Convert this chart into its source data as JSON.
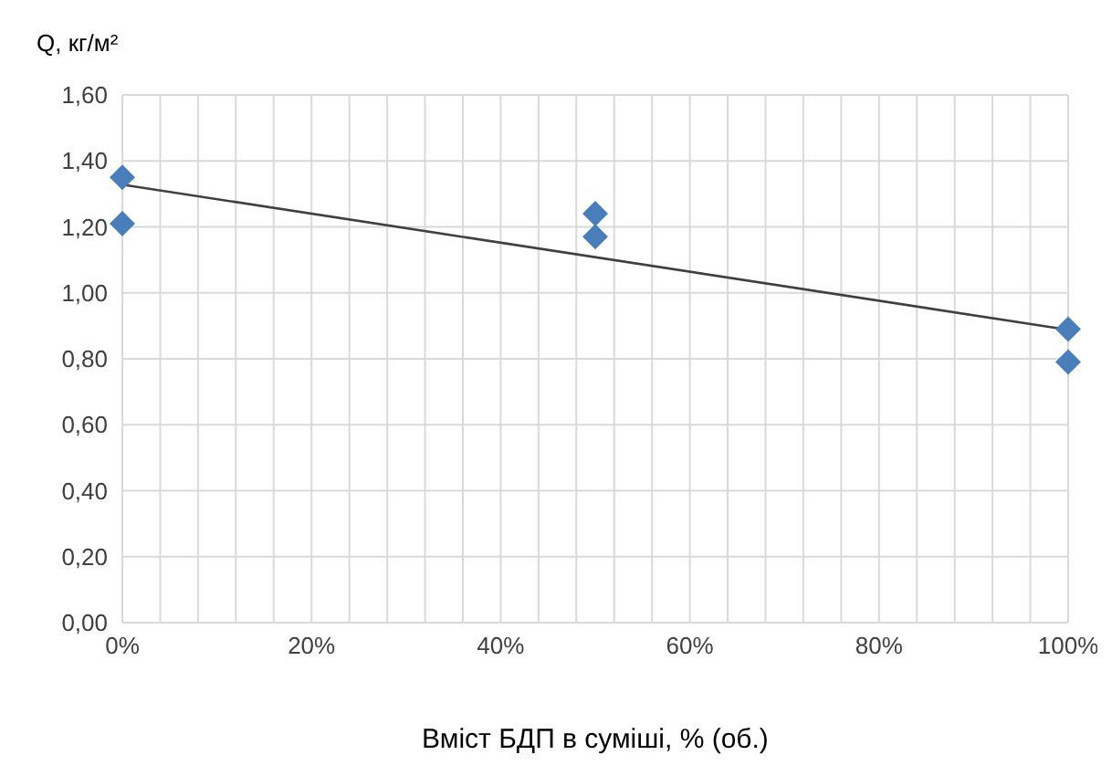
{
  "chart_data": {
    "type": "scatter",
    "xlabel": "Вміст БДП в суміші, % (об.)",
    "ylabel": "Q, кг/м²",
    "xlim": [
      0,
      100
    ],
    "xticks": [
      {
        "value": 0,
        "label": "0%"
      },
      {
        "value": 4,
        "label": null
      },
      {
        "value": 8,
        "label": null
      },
      {
        "value": 12,
        "label": null
      },
      {
        "value": 16,
        "label": null
      },
      {
        "value": 20,
        "label": "20%"
      },
      {
        "value": 24,
        "label": null
      },
      {
        "value": 28,
        "label": null
      },
      {
        "value": 32,
        "label": null
      },
      {
        "value": 36,
        "label": null
      },
      {
        "value": 40,
        "label": "40%"
      },
      {
        "value": 44,
        "label": null
      },
      {
        "value": 48,
        "label": null
      },
      {
        "value": 52,
        "label": null
      },
      {
        "value": 56,
        "label": null
      },
      {
        "value": 60,
        "label": "60%"
      },
      {
        "value": 64,
        "label": null
      },
      {
        "value": 68,
        "label": null
      },
      {
        "value": 72,
        "label": null
      },
      {
        "value": 76,
        "label": null
      },
      {
        "value": 80,
        "label": "80%"
      },
      {
        "value": 84,
        "label": null
      },
      {
        "value": 88,
        "label": null
      },
      {
        "value": 92,
        "label": null
      },
      {
        "value": 96,
        "label": null
      },
      {
        "value": 100,
        "label": "100%"
      }
    ],
    "ylim": [
      0,
      1.6
    ],
    "yticks": [
      {
        "value": 0,
        "label": "0,00"
      },
      {
        "value": 0.2,
        "label": "0,20"
      },
      {
        "value": 0.4,
        "label": "0,40"
      },
      {
        "value": 0.6,
        "label": "0,60"
      },
      {
        "value": 0.8,
        "label": "0,80"
      },
      {
        "value": 1,
        "label": "1,00"
      },
      {
        "value": 1.2,
        "label": "1,20"
      },
      {
        "value": 1.4,
        "label": "1,40"
      },
      {
        "value": 1.6,
        "label": "1,60"
      }
    ],
    "grid": true,
    "series": [
      {
        "marker": "diamond",
        "color": "#4a7ebb",
        "x": [
          0,
          0,
          50,
          50,
          100,
          100
        ],
        "values": [
          1.35,
          1.21,
          1.24,
          1.17,
          0.89,
          0.79
        ]
      },
      {
        "type": "line",
        "marker": "none",
        "line_style": "solid",
        "color": "#404040",
        "x": [
          0,
          100
        ],
        "values": [
          1.328,
          0.888
        ]
      }
    ]
  }
}
